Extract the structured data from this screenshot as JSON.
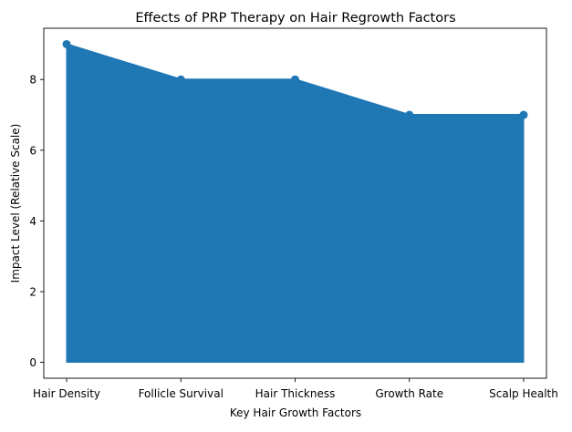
{
  "chart_data": {
    "type": "area",
    "title": "Effects of PRP Therapy on Hair Regrowth Factors",
    "xlabel": "Key Hair Growth Factors",
    "ylabel": "Impact Level (Relative Scale)",
    "categories": [
      "Hair Density",
      "Follicle Survival",
      "Hair Thickness",
      "Growth Rate",
      "Scalp Health"
    ],
    "values": [
      9,
      8,
      8,
      7,
      7
    ],
    "ylim": [
      -0.45,
      9.45
    ],
    "yticks": [
      0,
      2,
      4,
      6,
      8
    ],
    "grid": false,
    "color": "#1f77b4"
  }
}
